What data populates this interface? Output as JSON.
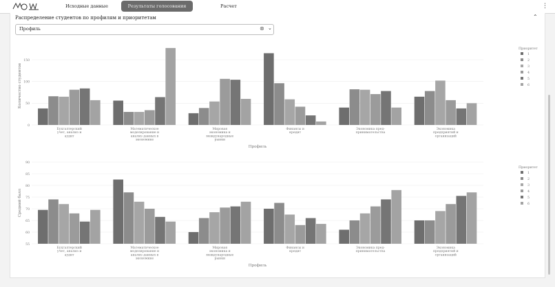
{
  "app": {
    "tabs": [
      {
        "label": "Исходные данные",
        "active": false
      },
      {
        "label": "Результаты голосования",
        "active": true
      },
      {
        "label": "Расчет",
        "active": false
      }
    ],
    "menu_icon": "kebab-menu-icon"
  },
  "panel": {
    "title": "Распределение студентов по профилям и приоритетам",
    "collapse_icon": "chevron-up-icon",
    "select": {
      "value": "Профиль",
      "clear_icon": "clear-icon",
      "arrow_icon": "chevron-down-icon"
    }
  },
  "colors": {
    "p1": "#6e6e6e",
    "p2": "#8c8c8c",
    "p3": "#a6a6a6",
    "p4": "#9b9b9b",
    "p5": "#757575",
    "p6": "#a3a3a3"
  },
  "chart_data": [
    {
      "type": "bar",
      "title": "",
      "xlabel": "Профиль",
      "ylabel": "Количество студентов",
      "ylim": [
        0,
        180
      ],
      "yticks": [
        0,
        50,
        100,
        150
      ],
      "grid": true,
      "legend_title": "Приоритет",
      "legend_position": "right",
      "categories": [
        "Бухгалтерский учет, анализ и аудит",
        "Математическое моделирование и анализ данных в экономике",
        "Мировая экономика и международные рынки",
        "Финансы и кредит",
        "Экономика предпринимательства",
        "Экономика предприятий и организаций"
      ],
      "category_labels": [
        [
          "Бухгалтерский",
          "учет, анализ и",
          "аудит"
        ],
        [
          "Математическое",
          "моделирование и",
          "анализ данных в",
          "экономике"
        ],
        [
          "Мировая",
          "экономика и",
          "международные",
          "рынки"
        ],
        [
          "Финансы и",
          "кредит"
        ],
        [
          "Экономика пред-",
          "принимательства"
        ],
        [
          "Экономика",
          "предприятий и",
          "организаций"
        ]
      ],
      "series": [
        {
          "name": "1",
          "values": [
            38,
            56,
            27,
            165,
            40,
            65
          ]
        },
        {
          "name": "2",
          "values": [
            66,
            30,
            39,
            96,
            82,
            78
          ]
        },
        {
          "name": "3",
          "values": [
            65,
            30,
            54,
            59,
            81,
            102
          ]
        },
        {
          "name": "4",
          "values": [
            81,
            34,
            106,
            42,
            71,
            57
          ]
        },
        {
          "name": "5",
          "values": [
            84,
            64,
            104,
            22,
            78,
            38
          ]
        },
        {
          "name": "6",
          "values": [
            57,
            177,
            60,
            8,
            40,
            50
          ]
        }
      ]
    },
    {
      "type": "bar",
      "title": "",
      "xlabel": "Профиль",
      "ylabel": "Средний балл",
      "ylim": [
        55,
        90
      ],
      "yticks": [
        55,
        60,
        65,
        70,
        75,
        80,
        85,
        90
      ],
      "grid": true,
      "legend_title": "Приоритет",
      "legend_position": "right",
      "categories": [
        "Бухгалтерский учет, анализ и аудит",
        "Математическое моделирование и анализ данных в экономике",
        "Мировая экономика и международные рынки",
        "Финансы и кредит",
        "Экономика предпринимательства",
        "Экономика предприятий и организаций"
      ],
      "category_labels": [
        [
          "Бухгалтерский",
          "учет, анализ и",
          "аудит"
        ],
        [
          "Математическое",
          "моделирование и",
          "анализ данных в",
          "экономике"
        ],
        [
          "Мировая",
          "экономика и",
          "международные",
          "рынки"
        ],
        [
          "Финансы и",
          "кредит"
        ],
        [
          "Экономика пред-",
          "принимательства"
        ],
        [
          "Экономика",
          "предприятий и",
          "организаций"
        ]
      ],
      "series": [
        {
          "name": "1",
          "values": [
            69.5,
            82.5,
            60,
            70,
            61,
            65
          ]
        },
        {
          "name": "2",
          "values": [
            74,
            77,
            66,
            72.5,
            65,
            65
          ]
        },
        {
          "name": "3",
          "values": [
            72,
            73,
            68.5,
            67.5,
            68,
            69
          ]
        },
        {
          "name": "4",
          "values": [
            68,
            70,
            70.5,
            63,
            71,
            72
          ]
        },
        {
          "name": "5",
          "values": [
            64.5,
            66.5,
            71,
            66,
            74,
            75.5
          ]
        },
        {
          "name": "6",
          "values": [
            69.5,
            64.5,
            73,
            63.5,
            78,
            77
          ]
        }
      ]
    }
  ]
}
